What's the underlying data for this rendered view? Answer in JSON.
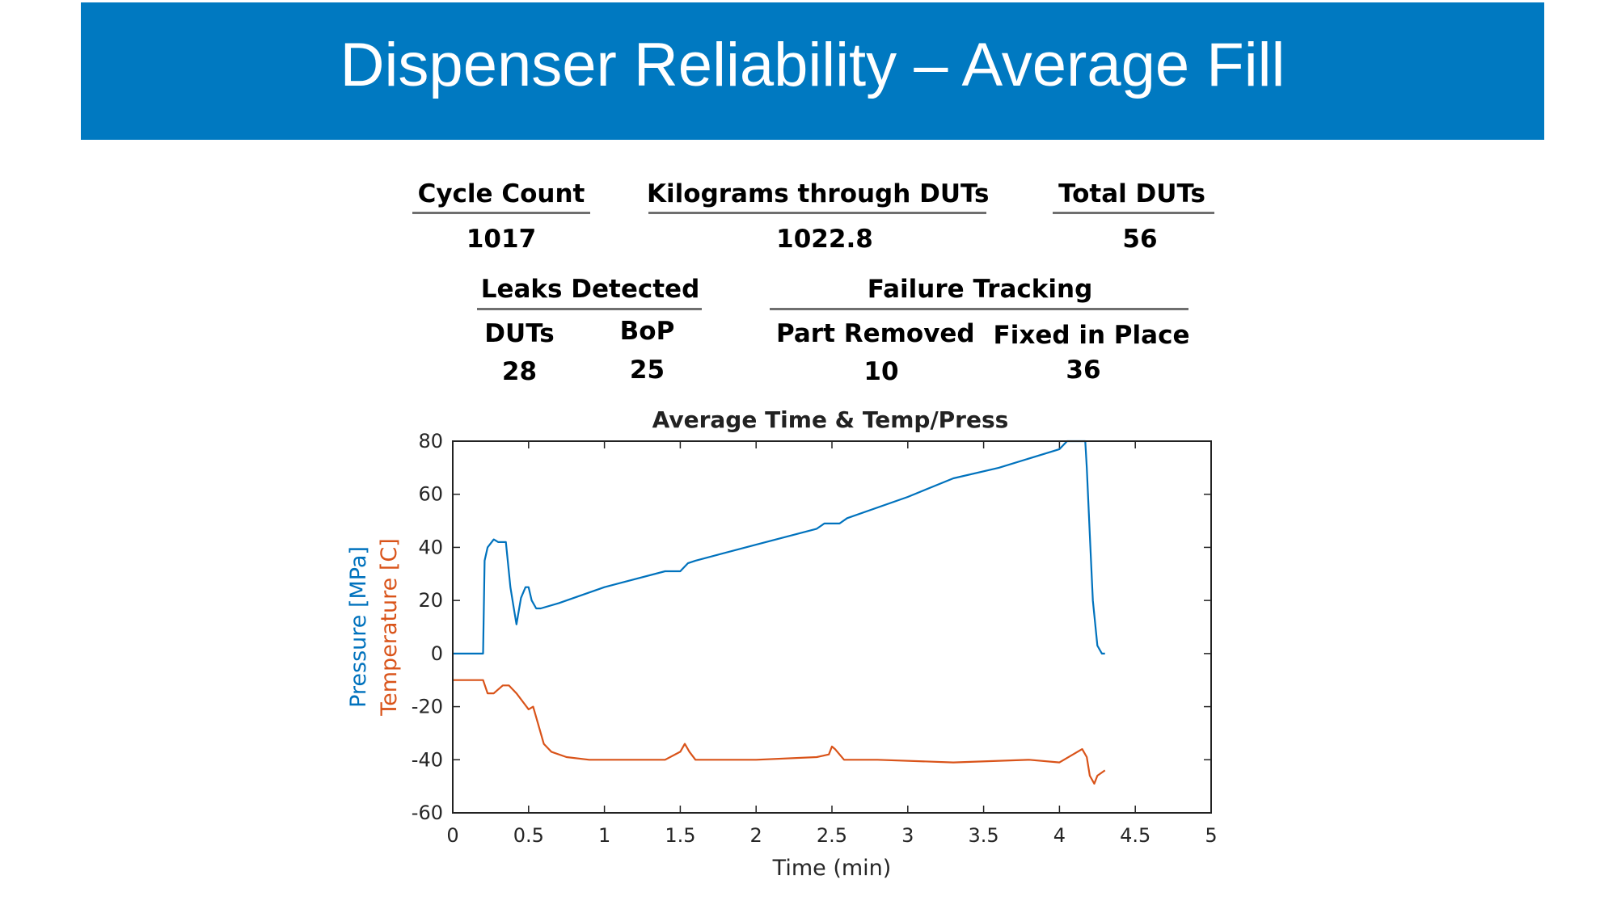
{
  "slide": {
    "title": "Dispenser Reliability – Average Fill"
  },
  "stats": {
    "cycle_count": {
      "label": "Cycle Count",
      "value": "1017"
    },
    "kilograms": {
      "label": "Kilograms through DUTs",
      "value": "1022.8"
    },
    "total_duts": {
      "label": "Total DUTs",
      "value": "56"
    },
    "leaks": {
      "label": "Leaks Detected",
      "duts": {
        "label": "DUTs",
        "value": "28"
      },
      "bop": {
        "label": "BoP",
        "value": "25"
      }
    },
    "failures": {
      "label": "Failure Tracking",
      "removed": {
        "label": "Part Removed",
        "value": "10"
      },
      "fixed": {
        "label": "Fixed in Place",
        "value": "36"
      }
    }
  },
  "colors": {
    "banner": "#0079c1",
    "pressure": "#0072bd",
    "temperature": "#d95319"
  },
  "chart_data": {
    "type": "line",
    "title": "Average Time & Temp/Press",
    "xlabel": "Time (min)",
    "ylabel_pressure": "Pressure [MPa]",
    "ylabel_temperature": "Temperature [C]",
    "xlim": [
      0,
      5
    ],
    "ylim": [
      -60,
      80
    ],
    "xticks": [
      0,
      0.5,
      1,
      1.5,
      2,
      2.5,
      3,
      3.5,
      4,
      4.5,
      5
    ],
    "xtick_labels": [
      "0",
      "0.5",
      "1",
      "1.5",
      "2",
      "2.5",
      "3",
      "3.5",
      "4",
      "4.5",
      "5"
    ],
    "yticks": [
      80,
      60,
      40,
      20,
      0,
      -20,
      -40,
      -60
    ],
    "ytick_labels": [
      "80",
      "60",
      "40",
      "20",
      "0",
      "-20",
      "-40",
      "-60"
    ],
    "grid": false,
    "series": [
      {
        "key": "pressure",
        "x": [
          0,
          0.2,
          0.21,
          0.23,
          0.27,
          0.3,
          0.35,
          0.38,
          0.4,
          0.42,
          0.45,
          0.48,
          0.5,
          0.52,
          0.55,
          0.58,
          0.7,
          1.0,
          1.4,
          1.5,
          1.55,
          1.6,
          2.0,
          2.4,
          2.45,
          2.55,
          2.6,
          3.0,
          3.3,
          3.6,
          4.0,
          4.05,
          4.17,
          4.18,
          4.2,
          4.22,
          4.25,
          4.28,
          4.3
        ],
        "y": [
          0,
          0,
          35,
          40,
          43,
          42,
          42,
          25,
          18,
          11,
          21,
          25,
          25,
          20,
          17,
          17,
          19,
          25,
          31,
          31,
          34,
          35,
          41,
          47,
          49,
          49,
          51,
          59,
          66,
          70,
          77,
          80,
          80,
          70,
          45,
          20,
          3,
          0,
          0
        ]
      },
      {
        "key": "temperature",
        "x": [
          0,
          0.1,
          0.2,
          0.23,
          0.27,
          0.33,
          0.37,
          0.42,
          0.46,
          0.5,
          0.53,
          0.56,
          0.6,
          0.65,
          0.75,
          0.9,
          1.2,
          1.4,
          1.5,
          1.53,
          1.56,
          1.6,
          2.0,
          2.4,
          2.48,
          2.5,
          2.52,
          2.58,
          2.8,
          3.3,
          3.8,
          4.0,
          4.15,
          4.18,
          4.2,
          4.23,
          4.25,
          4.3
        ],
        "y": [
          -10,
          -10,
          -10,
          -15,
          -15,
          -12,
          -12,
          -15,
          -18,
          -21,
          -20,
          -26,
          -34,
          -37,
          -39,
          -40,
          -40,
          -40,
          -37,
          -34,
          -37,
          -40,
          -40,
          -39,
          -38,
          -35,
          -36,
          -40,
          -40,
          -41,
          -40,
          -41,
          -36,
          -39,
          -46,
          -49,
          -46,
          -44
        ]
      }
    ]
  }
}
